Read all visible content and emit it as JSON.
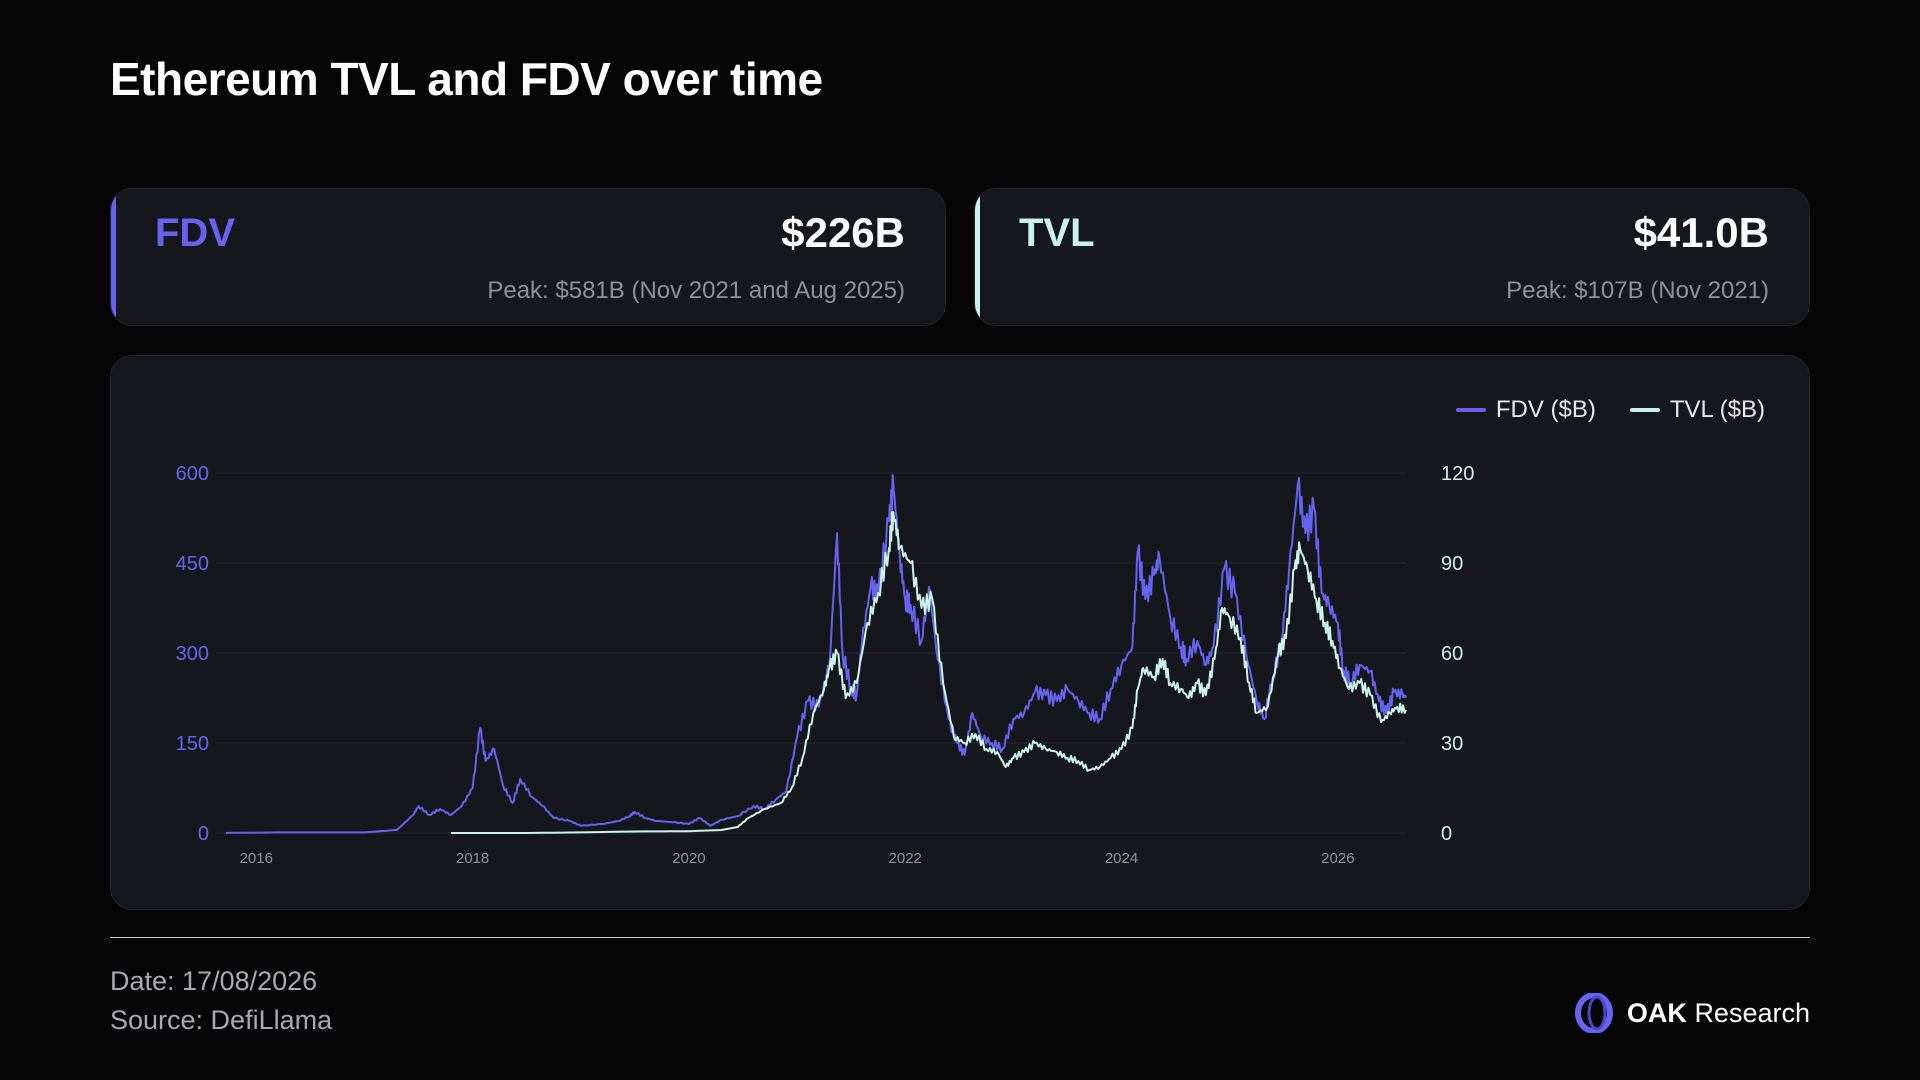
{
  "title": "Ethereum TVL and FDV over time",
  "colors": {
    "fdv": "#6663f0",
    "tvl": "#c8f4ec",
    "background": "#050506",
    "panel": "#16171c"
  },
  "cards": {
    "fdv": {
      "label": "FDV",
      "value": "$226B",
      "peak": "Peak: $581B (Nov 2021 and Aug 2025)"
    },
    "tvl": {
      "label": "TVL",
      "value": "$41.0B",
      "peak": "Peak: $107B (Nov 2021)"
    }
  },
  "footer": {
    "date": "Date: 17/08/2026",
    "source": "Source: DefiLlama"
  },
  "brand": {
    "bold": "OAK",
    "rest": "Research",
    "icon": "oak-ring-icon"
  },
  "chart_data": {
    "type": "line",
    "legend_position": "top-right",
    "grid": true,
    "x_ticks": [
      "2016",
      "2018",
      "2020",
      "2022",
      "2024",
      "2026"
    ],
    "x_range": [
      2015.72,
      2026.63
    ],
    "y_left": {
      "ticks": [
        "0",
        "150",
        "300",
        "450",
        "600"
      ],
      "range": [
        0,
        600
      ]
    },
    "y_right": {
      "ticks": [
        "0",
        "30",
        "60",
        "90",
        "120"
      ],
      "range": [
        0,
        120
      ]
    },
    "series": [
      {
        "name": "FDV ($B)",
        "axis": "left",
        "color": "#6663f0",
        "points": [
          [
            2015.72,
            0.2
          ],
          [
            2016.2,
            1
          ],
          [
            2016.6,
            1
          ],
          [
            2017.0,
            1
          ],
          [
            2017.3,
            5
          ],
          [
            2017.45,
            30
          ],
          [
            2017.5,
            45
          ],
          [
            2017.6,
            30
          ],
          [
            2017.7,
            40
          ],
          [
            2017.8,
            30
          ],
          [
            2017.9,
            45
          ],
          [
            2018.0,
            75
          ],
          [
            2018.07,
            175
          ],
          [
            2018.12,
            120
          ],
          [
            2018.2,
            140
          ],
          [
            2018.28,
            80
          ],
          [
            2018.37,
            50
          ],
          [
            2018.44,
            90
          ],
          [
            2018.55,
            60
          ],
          [
            2018.65,
            45
          ],
          [
            2018.75,
            25
          ],
          [
            2018.9,
            20
          ],
          [
            2019.0,
            12
          ],
          [
            2019.2,
            15
          ],
          [
            2019.35,
            20
          ],
          [
            2019.45,
            28
          ],
          [
            2019.5,
            35
          ],
          [
            2019.6,
            25
          ],
          [
            2019.7,
            20
          ],
          [
            2019.85,
            18
          ],
          [
            2020.0,
            15
          ],
          [
            2020.1,
            25
          ],
          [
            2020.2,
            12
          ],
          [
            2020.3,
            22
          ],
          [
            2020.45,
            28
          ],
          [
            2020.6,
            45
          ],
          [
            2020.7,
            40
          ],
          [
            2020.8,
            55
          ],
          [
            2020.9,
            70
          ],
          [
            2021.0,
            160
          ],
          [
            2021.1,
            220
          ],
          [
            2021.2,
            210
          ],
          [
            2021.3,
            280
          ],
          [
            2021.37,
            500
          ],
          [
            2021.42,
            300
          ],
          [
            2021.5,
            240
          ],
          [
            2021.55,
            230
          ],
          [
            2021.6,
            320
          ],
          [
            2021.68,
            410
          ],
          [
            2021.75,
            400
          ],
          [
            2021.85,
            520
          ],
          [
            2021.89,
            581
          ],
          [
            2021.95,
            460
          ],
          [
            2022.0,
            390
          ],
          [
            2022.05,
            380
          ],
          [
            2022.15,
            320
          ],
          [
            2022.22,
            410
          ],
          [
            2022.3,
            290
          ],
          [
            2022.4,
            190
          ],
          [
            2022.48,
            150
          ],
          [
            2022.55,
            130
          ],
          [
            2022.62,
            200
          ],
          [
            2022.7,
            160
          ],
          [
            2022.8,
            150
          ],
          [
            2022.9,
            140
          ],
          [
            2023.0,
            190
          ],
          [
            2023.1,
            200
          ],
          [
            2023.2,
            235
          ],
          [
            2023.3,
            230
          ],
          [
            2023.4,
            220
          ],
          [
            2023.5,
            240
          ],
          [
            2023.6,
            220
          ],
          [
            2023.7,
            200
          ],
          [
            2023.8,
            190
          ],
          [
            2023.9,
            240
          ],
          [
            2024.0,
            280
          ],
          [
            2024.1,
            310
          ],
          [
            2024.15,
            470
          ],
          [
            2024.22,
            390
          ],
          [
            2024.3,
            430
          ],
          [
            2024.35,
            460
          ],
          [
            2024.45,
            360
          ],
          [
            2024.55,
            310
          ],
          [
            2024.6,
            290
          ],
          [
            2024.7,
            320
          ],
          [
            2024.78,
            280
          ],
          [
            2024.85,
            310
          ],
          [
            2024.95,
            440
          ],
          [
            2025.05,
            400
          ],
          [
            2025.15,
            300
          ],
          [
            2025.25,
            220
          ],
          [
            2025.32,
            190
          ],
          [
            2025.4,
            260
          ],
          [
            2025.48,
            320
          ],
          [
            2025.55,
            440
          ],
          [
            2025.63,
            581
          ],
          [
            2025.7,
            500
          ],
          [
            2025.78,
            540
          ],
          [
            2025.85,
            400
          ],
          [
            2025.92,
            380
          ],
          [
            2026.0,
            350
          ],
          [
            2026.05,
            270
          ],
          [
            2026.12,
            250
          ],
          [
            2026.2,
            280
          ],
          [
            2026.3,
            270
          ],
          [
            2026.38,
            220
          ],
          [
            2026.45,
            200
          ],
          [
            2026.52,
            235
          ],
          [
            2026.6,
            230
          ],
          [
            2026.63,
            226
          ]
        ]
      },
      {
        "name": "TVL ($B)",
        "axis": "right",
        "color": "#c8f4ec",
        "points": [
          [
            2017.8,
            0
          ],
          [
            2018.5,
            0
          ],
          [
            2019.0,
            0.2
          ],
          [
            2019.5,
            0.5
          ],
          [
            2020.0,
            0.6
          ],
          [
            2020.3,
            1
          ],
          [
            2020.45,
            2
          ],
          [
            2020.55,
            5
          ],
          [
            2020.7,
            8
          ],
          [
            2020.85,
            10
          ],
          [
            2020.95,
            15
          ],
          [
            2021.05,
            25
          ],
          [
            2021.15,
            40
          ],
          [
            2021.25,
            48
          ],
          [
            2021.3,
            55
          ],
          [
            2021.37,
            60
          ],
          [
            2021.45,
            45
          ],
          [
            2021.55,
            50
          ],
          [
            2021.65,
            70
          ],
          [
            2021.75,
            80
          ],
          [
            2021.85,
            95
          ],
          [
            2021.89,
            107
          ],
          [
            2021.95,
            95
          ],
          [
            2022.05,
            90
          ],
          [
            2022.15,
            75
          ],
          [
            2022.25,
            78
          ],
          [
            2022.35,
            50
          ],
          [
            2022.45,
            32
          ],
          [
            2022.55,
            30
          ],
          [
            2022.65,
            33
          ],
          [
            2022.75,
            28
          ],
          [
            2022.85,
            27
          ],
          [
            2022.93,
            22
          ],
          [
            2023.0,
            25
          ],
          [
            2023.1,
            27
          ],
          [
            2023.2,
            30
          ],
          [
            2023.3,
            28
          ],
          [
            2023.4,
            27
          ],
          [
            2023.5,
            25
          ],
          [
            2023.6,
            24
          ],
          [
            2023.7,
            21
          ],
          [
            2023.8,
            22
          ],
          [
            2023.9,
            25
          ],
          [
            2024.0,
            28
          ],
          [
            2024.1,
            35
          ],
          [
            2024.15,
            48
          ],
          [
            2024.2,
            55
          ],
          [
            2024.3,
            52
          ],
          [
            2024.38,
            58
          ],
          [
            2024.45,
            50
          ],
          [
            2024.55,
            48
          ],
          [
            2024.62,
            45
          ],
          [
            2024.7,
            50
          ],
          [
            2024.78,
            46
          ],
          [
            2024.86,
            58
          ],
          [
            2024.93,
            75
          ],
          [
            2025.0,
            72
          ],
          [
            2025.1,
            65
          ],
          [
            2025.18,
            50
          ],
          [
            2025.25,
            40
          ],
          [
            2025.35,
            42
          ],
          [
            2025.45,
            60
          ],
          [
            2025.52,
            65
          ],
          [
            2025.6,
            88
          ],
          [
            2025.65,
            95
          ],
          [
            2025.72,
            88
          ],
          [
            2025.8,
            78
          ],
          [
            2025.88,
            70
          ],
          [
            2025.95,
            64
          ],
          [
            2026.02,
            55
          ],
          [
            2026.1,
            48
          ],
          [
            2026.2,
            50
          ],
          [
            2026.3,
            46
          ],
          [
            2026.4,
            37
          ],
          [
            2026.48,
            40
          ],
          [
            2026.55,
            42
          ],
          [
            2026.63,
            41
          ]
        ]
      }
    ]
  }
}
